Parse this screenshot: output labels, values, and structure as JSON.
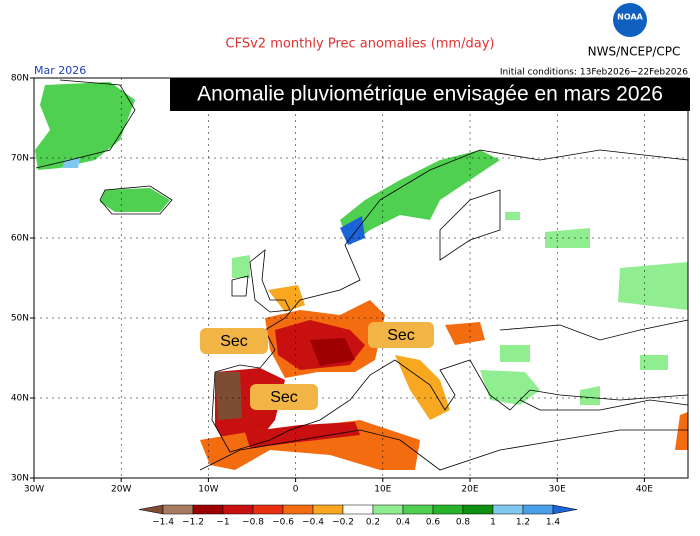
{
  "header": {
    "title": "CFSv2 monthly Prec anomalies (mm/day)",
    "agency": "NWS/NCEP/CPC",
    "logo": "NOAA",
    "month_label": "Mar 2026",
    "initial_conditions": "Initial conditions: 13Feb2026−22Feb2026"
  },
  "overlay_title": "Anomalie pluviométrique envisagée en mars 2026",
  "labels": [
    "Sec",
    "Sec",
    "Sec"
  ],
  "map": {
    "lonlim": [
      -30,
      45
    ],
    "latlim": [
      30,
      80
    ],
    "lonticks": [
      {
        "value": -30,
        "label": "30W"
      },
      {
        "value": -20,
        "label": "20W"
      },
      {
        "value": -10,
        "label": "10W"
      },
      0,
      {
        "value": 10,
        "label": "10E"
      },
      {
        "value": 20,
        "label": "20E"
      },
      {
        "value": 30,
        "label": "30E"
      },
      {
        "value": 40,
        "label": "40E"
      }
    ],
    "latticks": [
      {
        "value": 30,
        "label": "30N"
      },
      {
        "value": 40,
        "label": "40N"
      },
      {
        "value": 50,
        "label": "50N"
      },
      {
        "value": 60,
        "label": "60N"
      },
      {
        "value": 70,
        "label": "70N"
      },
      {
        "value": 80,
        "label": "80N"
      }
    ]
  },
  "colorbar": {
    "ticks": [
      {
        "value": -1.4,
        "label": "−1.4"
      },
      {
        "value": -1.2,
        "label": "−1.2"
      },
      {
        "value": -1,
        "label": "−1"
      },
      {
        "value": -0.8,
        "label": "−0.8"
      },
      {
        "value": -0.6,
        "label": "−0.6"
      },
      {
        "value": -0.4,
        "label": "−0.4"
      },
      {
        "value": -0.2,
        "label": "−0.2"
      },
      0.2,
      0.4,
      0.6,
      0.8,
      1,
      1.2,
      1.4
    ],
    "colors": [
      "#7d4c33",
      "#a77b62",
      "#9c0000",
      "#c81010",
      "#e83010",
      "#f46c10",
      "#f8a820",
      "#ffffff",
      "#90ee90",
      "#50d050",
      "#28b428",
      "#109010",
      "#80c8f0",
      "#48a0e8",
      "#1a64d8"
    ]
  }
}
